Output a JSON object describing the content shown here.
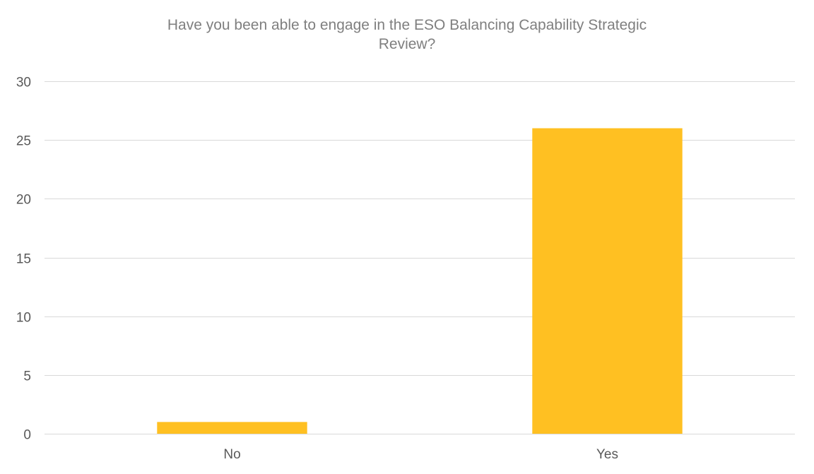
{
  "chart_data": {
    "type": "bar",
    "title": "Have you been able to engage in the ESO Balancing Capability Strategic Review?",
    "xlabel": "",
    "ylabel": "",
    "categories": [
      "No",
      "Yes"
    ],
    "values": [
      1,
      26
    ],
    "ylim": [
      0,
      30
    ],
    "yticks": [
      0,
      5,
      10,
      15,
      20,
      25,
      30
    ],
    "grid": true,
    "legend": "none",
    "colors": {
      "bar": "#FFC022",
      "grid": "#D9D9D9",
      "axis_text": "#595959",
      "title": "#7F7F7F"
    }
  }
}
